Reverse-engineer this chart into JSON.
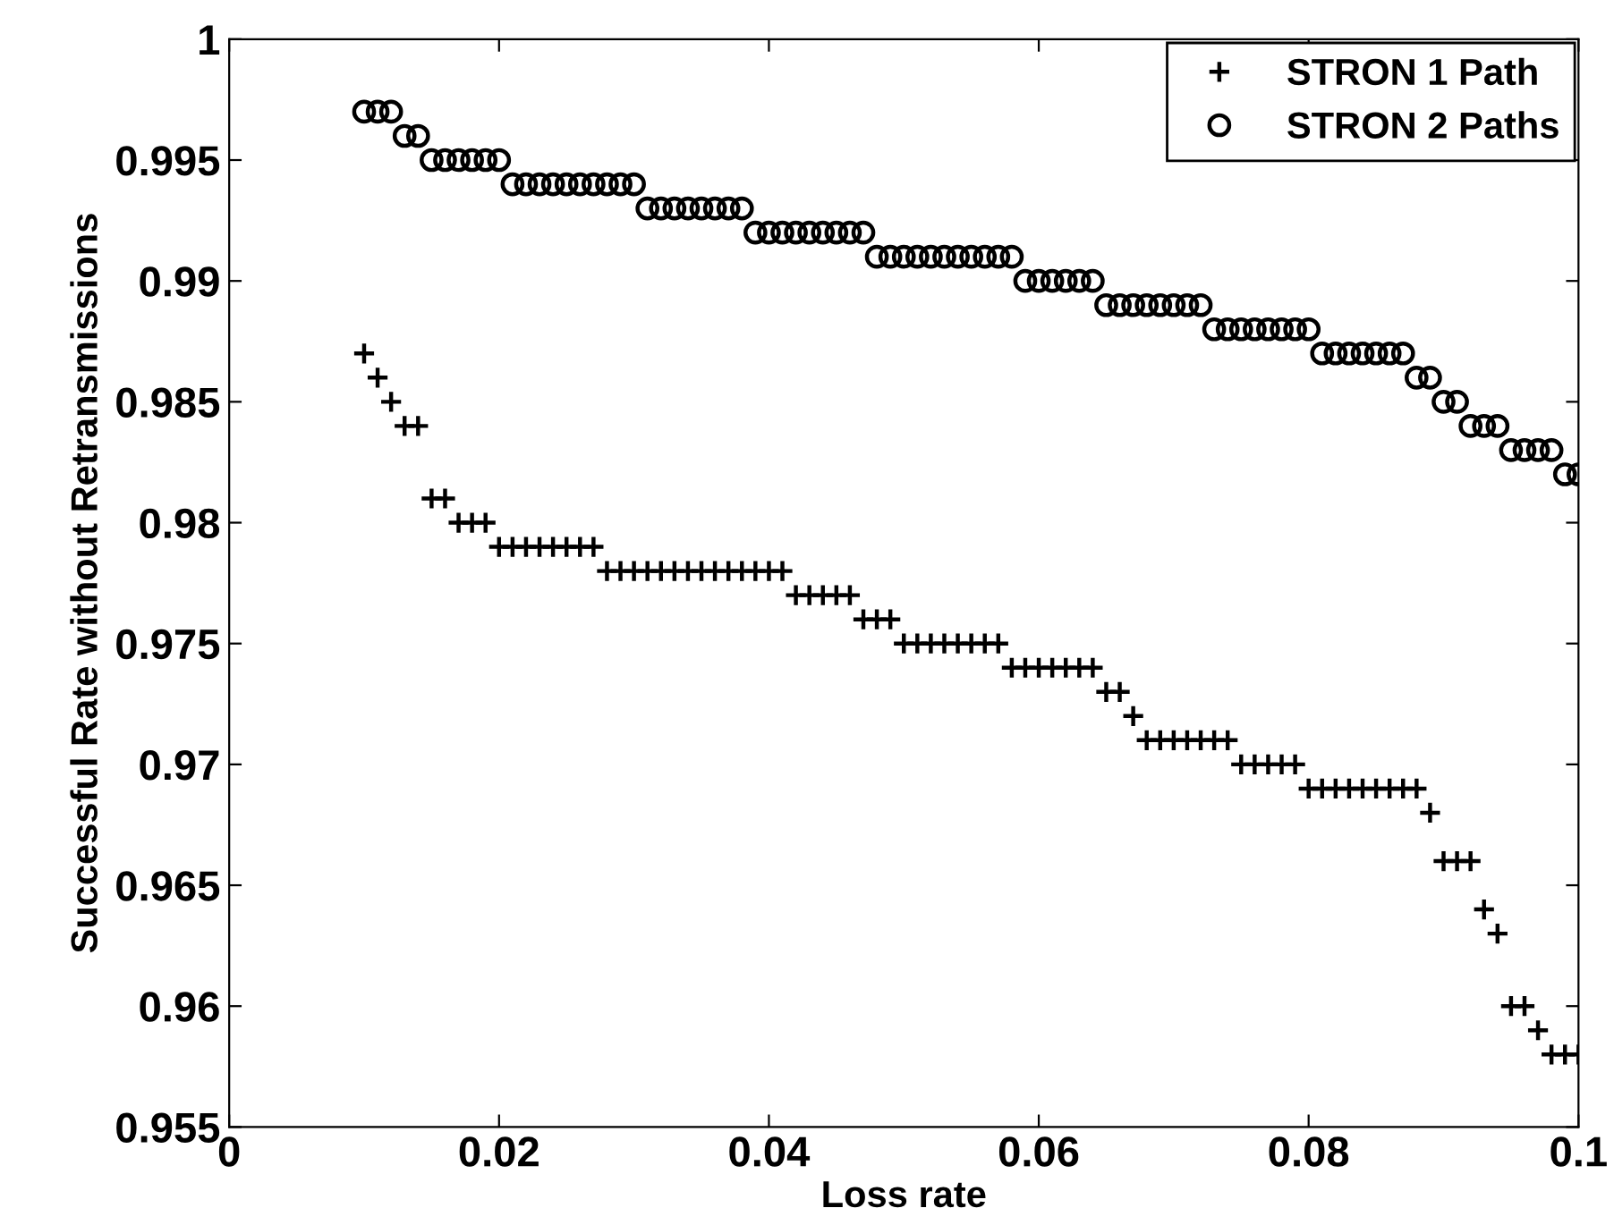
{
  "chart_data": {
    "type": "scatter",
    "xlabel": "Loss rate",
    "ylabel": "Successful Rate without Retransmissions",
    "x": [
      0.01,
      0.011,
      0.012,
      0.013,
      0.014,
      0.015,
      0.016,
      0.017,
      0.018,
      0.019,
      0.02,
      0.021,
      0.022,
      0.023,
      0.024,
      0.025,
      0.026,
      0.027,
      0.028,
      0.029,
      0.03,
      0.031,
      0.032,
      0.033,
      0.034,
      0.035,
      0.036,
      0.037,
      0.038,
      0.039,
      0.04,
      0.041,
      0.042,
      0.043,
      0.044,
      0.045,
      0.046,
      0.047,
      0.048,
      0.049,
      0.05,
      0.051,
      0.052,
      0.053,
      0.054,
      0.055,
      0.056,
      0.057,
      0.058,
      0.059,
      0.06,
      0.061,
      0.062,
      0.063,
      0.064,
      0.065,
      0.066,
      0.067,
      0.068,
      0.069,
      0.07,
      0.071,
      0.072,
      0.073,
      0.074,
      0.075,
      0.076,
      0.077,
      0.078,
      0.079,
      0.08,
      0.081,
      0.082,
      0.083,
      0.084,
      0.085,
      0.086,
      0.087,
      0.088,
      0.089,
      0.09,
      0.091,
      0.092,
      0.093,
      0.094,
      0.095,
      0.096,
      0.097,
      0.098,
      0.099,
      0.1
    ],
    "series": [
      {
        "name": "STRON 1 Path",
        "color": "#000000",
        "marker": "cross",
        "values": [
          0.987,
          0.986,
          0.985,
          0.984,
          0.984,
          0.981,
          0.981,
          0.98,
          0.98,
          0.98,
          0.979,
          0.979,
          0.979,
          0.979,
          0.979,
          0.979,
          0.979,
          0.979,
          0.978,
          0.978,
          0.978,
          0.978,
          0.978,
          0.978,
          0.978,
          0.978,
          0.978,
          0.978,
          0.978,
          0.978,
          0.978,
          0.978,
          0.977,
          0.977,
          0.977,
          0.977,
          0.977,
          0.976,
          0.976,
          0.976,
          0.975,
          0.975,
          0.975,
          0.975,
          0.975,
          0.975,
          0.975,
          0.975,
          0.974,
          0.974,
          0.974,
          0.974,
          0.974,
          0.974,
          0.974,
          0.973,
          0.973,
          0.972,
          0.971,
          0.971,
          0.971,
          0.971,
          0.971,
          0.971,
          0.971,
          0.97,
          0.97,
          0.97,
          0.97,
          0.97,
          0.969,
          0.969,
          0.969,
          0.969,
          0.969,
          0.969,
          0.969,
          0.969,
          0.969,
          0.968,
          0.966,
          0.966,
          0.966,
          0.964,
          0.963,
          0.96,
          0.96,
          0.959,
          0.958,
          0.958,
          0.958
        ]
      },
      {
        "name": "STRON 2 Paths",
        "color": "#000000",
        "marker": "circle",
        "values": [
          0.997,
          0.997,
          0.997,
          0.996,
          0.996,
          0.995,
          0.995,
          0.995,
          0.995,
          0.995,
          0.995,
          0.994,
          0.994,
          0.994,
          0.994,
          0.994,
          0.994,
          0.994,
          0.994,
          0.994,
          0.994,
          0.993,
          0.993,
          0.993,
          0.993,
          0.993,
          0.993,
          0.993,
          0.993,
          0.992,
          0.992,
          0.992,
          0.992,
          0.992,
          0.992,
          0.992,
          0.992,
          0.992,
          0.991,
          0.991,
          0.991,
          0.991,
          0.991,
          0.991,
          0.991,
          0.991,
          0.991,
          0.991,
          0.991,
          0.99,
          0.99,
          0.99,
          0.99,
          0.99,
          0.99,
          0.989,
          0.989,
          0.989,
          0.989,
          0.989,
          0.989,
          0.989,
          0.989,
          0.988,
          0.988,
          0.988,
          0.988,
          0.988,
          0.988,
          0.988,
          0.988,
          0.987,
          0.987,
          0.987,
          0.987,
          0.987,
          0.987,
          0.987,
          0.986,
          0.986,
          0.985,
          0.985,
          0.984,
          0.984,
          0.984,
          0.983,
          0.983,
          0.983,
          0.983,
          0.982,
          0.982
        ]
      }
    ],
    "xlim": [
      0,
      0.1
    ],
    "xticks": [
      {
        "value": 0,
        "label": "0"
      },
      0.02,
      0.04,
      0.06,
      0.08,
      0.1
    ],
    "ylim": [
      0.955,
      1
    ],
    "yticks": [
      0.955,
      0.96,
      0.965,
      0.97,
      0.975,
      0.98,
      0.985,
      0.99,
      0.995,
      {
        "value": 1,
        "label": "1"
      }
    ],
    "grid": false,
    "legend": "top right"
  }
}
